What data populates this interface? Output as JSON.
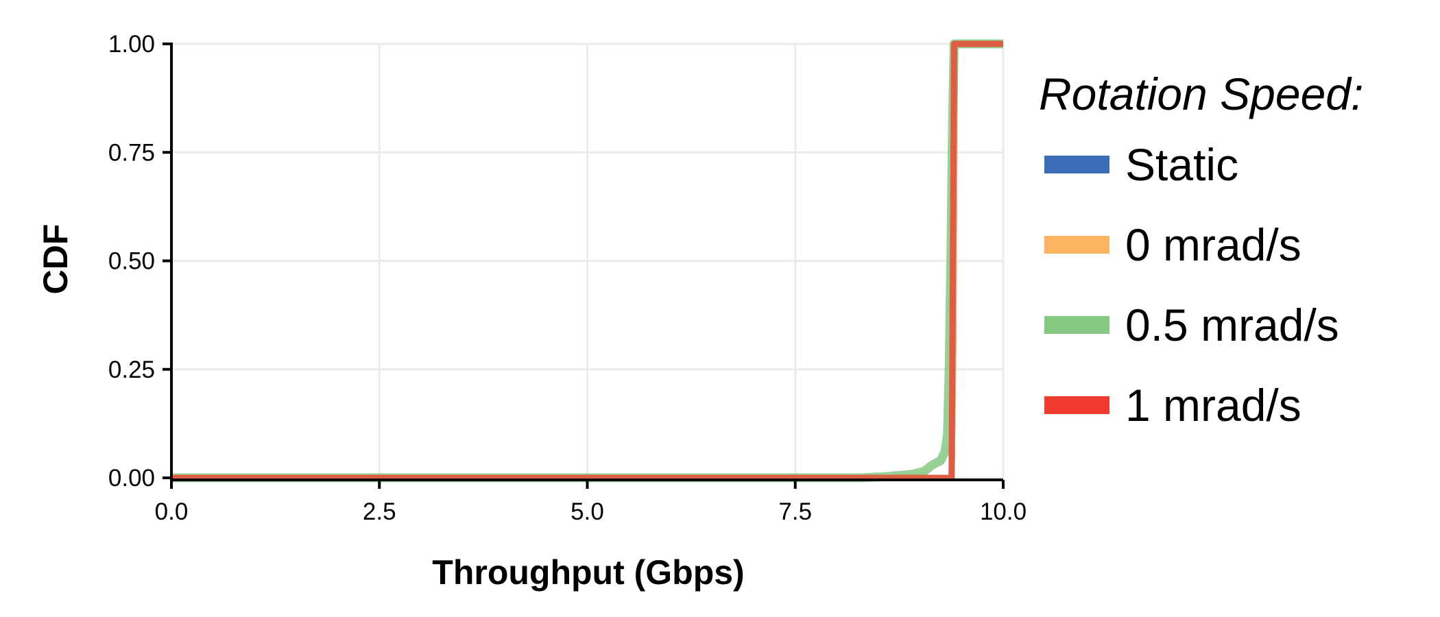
{
  "chart_data": {
    "type": "line",
    "title": "",
    "xlabel": "Throughput (Gbps)",
    "ylabel": "CDF",
    "xlim": [
      0,
      10
    ],
    "ylim": [
      0,
      1
    ],
    "xticks": [
      "0.0",
      "2.5",
      "5.0",
      "7.5",
      "10.0"
    ],
    "yticks": [
      "0.00",
      "0.25",
      "0.50",
      "0.75",
      "1.00"
    ],
    "grid": true,
    "legend": {
      "title": "Rotation Speed:",
      "placement": "right",
      "entries": [
        "Static",
        "0 mrad/s",
        "0.5 mrad/s",
        "1 mrad/s"
      ]
    },
    "series": [
      {
        "name": "Static",
        "color": "#3a6db5",
        "points": [
          [
            0,
            0
          ],
          [
            9.38,
            0
          ],
          [
            9.4,
            0.3
          ],
          [
            9.42,
            1.0
          ],
          [
            10,
            1.0
          ]
        ]
      },
      {
        "name": "0 mrad/s",
        "color": "#fdb462",
        "points": [
          [
            0,
            0
          ],
          [
            9.38,
            0
          ],
          [
            9.4,
            0.3
          ],
          [
            9.42,
            1.0
          ],
          [
            10,
            1.0
          ]
        ]
      },
      {
        "name": "0.5 mrad/s",
        "color": "#86c882",
        "points": [
          [
            0,
            0
          ],
          [
            8.3,
            0
          ],
          [
            8.6,
            0.003
          ],
          [
            8.9,
            0.008
          ],
          [
            9.05,
            0.015
          ],
          [
            9.15,
            0.03
          ],
          [
            9.25,
            0.04
          ],
          [
            9.3,
            0.06
          ],
          [
            9.33,
            0.1
          ],
          [
            9.35,
            0.25
          ],
          [
            9.37,
            0.5
          ],
          [
            9.39,
            0.8
          ],
          [
            9.41,
            1.0
          ],
          [
            10,
            1.0
          ]
        ]
      },
      {
        "name": "1 mrad/s",
        "color": "#f03c2e",
        "points": [
          [
            0,
            0
          ],
          [
            9.38,
            0
          ],
          [
            9.39,
            0.3
          ],
          [
            9.41,
            1.0
          ],
          [
            10,
            1.0
          ]
        ]
      }
    ]
  }
}
